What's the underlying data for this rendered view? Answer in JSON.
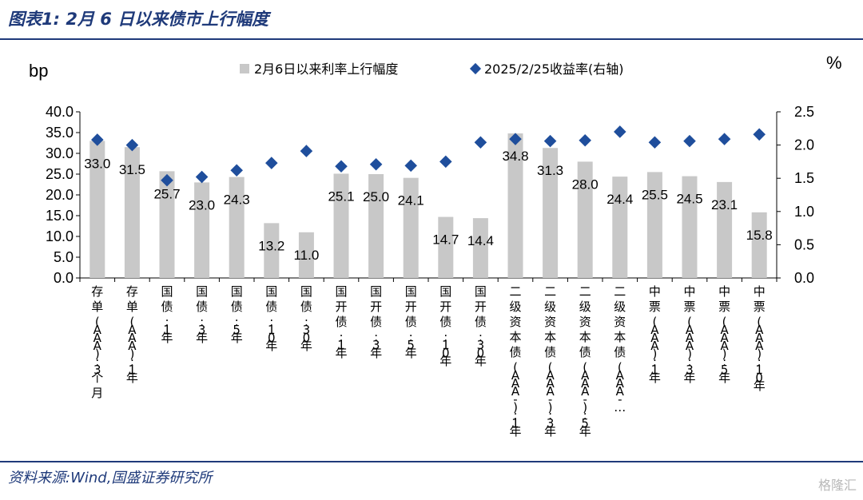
{
  "title": "图表1:  2月 6 日以来债市上行幅度",
  "source": "资料来源:Wind,国盛证券研究所",
  "watermark": "格隆汇",
  "colors": {
    "bar": "#c8c8c8",
    "marker": "#1f4e9c",
    "rule": "#1f3a7a"
  },
  "chart_data": {
    "type": "bar",
    "categories": [
      "存单(AAA):3个月",
      "存单(AAA):1年",
      "国债:1年",
      "国债:3年",
      "国债:5年",
      "国债:10年",
      "国债:30年",
      "国开债:1年",
      "国开债:3年",
      "国开债:5年",
      "国开债:10年",
      "国开债:30年",
      "二级资本债(AAA-):1年",
      "二级资本债(AAA-):3年",
      "二级资本债(AAA-):5年",
      "二级资本债(AAA-…",
      "中票(AAA):1年",
      "中票(AAA):3年",
      "中票(AAA):5年",
      "中票(AAA):10年"
    ],
    "series": [
      {
        "name": "2月6日以来利率上行幅度",
        "type": "bar",
        "axis": "left",
        "values": [
          33.0,
          31.5,
          25.7,
          23.0,
          24.3,
          13.2,
          11.0,
          25.1,
          25.0,
          24.1,
          14.7,
          14.4,
          34.8,
          31.3,
          28.0,
          24.4,
          25.5,
          24.5,
          23.1,
          15.8
        ],
        "labels": [
          "33.0",
          "31.5",
          "25.7",
          "23.0",
          "24.3",
          "13.2",
          "11.0",
          "25.1",
          "25.0",
          "24.1",
          "14.7",
          "14.4",
          "34.8",
          "31.3",
          "28.0",
          "24.4",
          "25.5",
          "24.5",
          "23.1",
          "15.8"
        ]
      },
      {
        "name": "2025/2/25收益率(右轴)",
        "type": "scatter",
        "axis": "right",
        "values": [
          2.08,
          2.0,
          1.47,
          1.52,
          1.62,
          1.73,
          1.91,
          1.68,
          1.71,
          1.69,
          1.75,
          2.04,
          2.09,
          2.06,
          2.07,
          2.2,
          2.04,
          2.06,
          2.09,
          2.16
        ]
      }
    ],
    "ylabel_left": "bp",
    "ylabel_right": "%",
    "ylim_left": [
      0,
      40
    ],
    "ylim_right": [
      0,
      2.5
    ],
    "yticks_left": [
      "0.0",
      "5.0",
      "10.0",
      "15.0",
      "20.0",
      "25.0",
      "30.0",
      "35.0",
      "40.0"
    ],
    "yticks_right": [
      "0.0",
      "0.5",
      "1.0",
      "1.5",
      "2.0",
      "2.5"
    ],
    "legend_position": "top",
    "grid": false
  }
}
